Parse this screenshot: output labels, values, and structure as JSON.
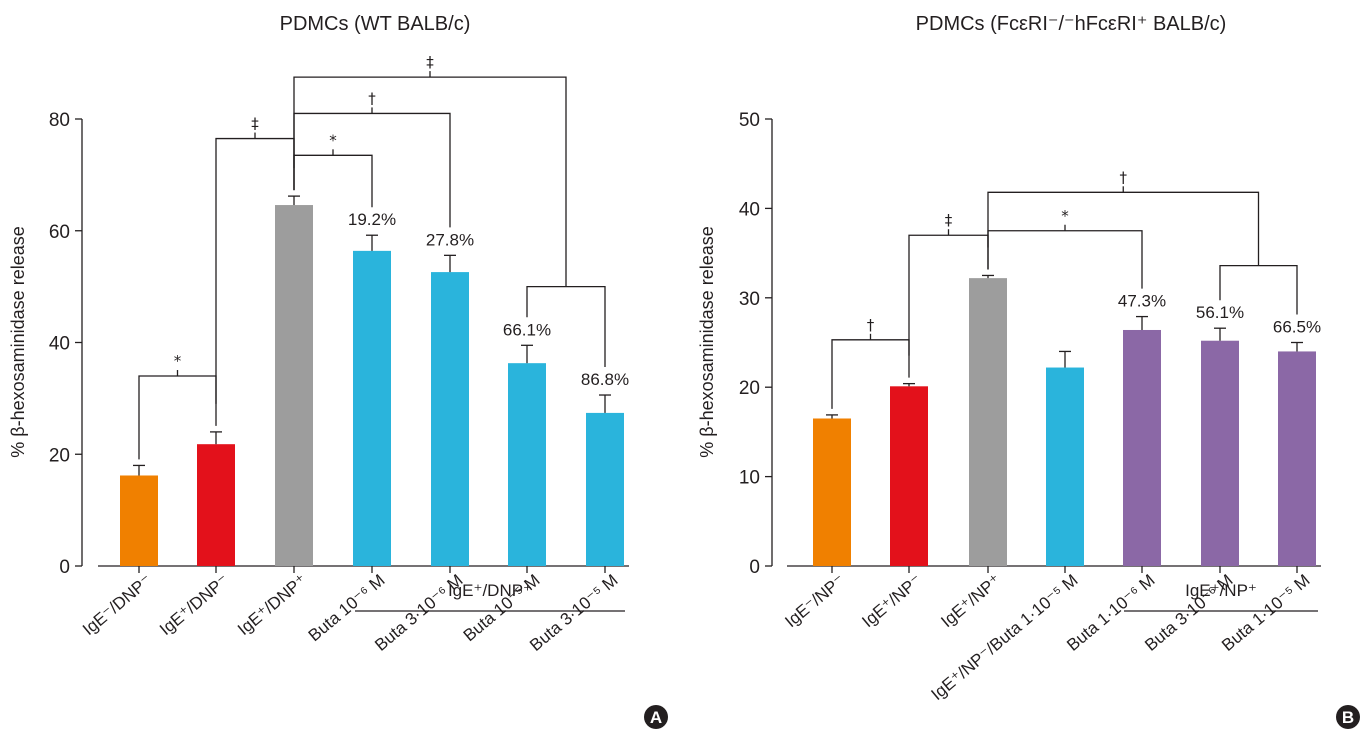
{
  "chart_data": [
    {
      "type": "bar",
      "panel": "A",
      "title": "PDMCs (WT BALB/c)",
      "ylabel": "% β-hexosaminidase release",
      "ylim": [
        0,
        80
      ],
      "yticks": [
        0,
        20,
        40,
        60,
        80
      ],
      "categories": [
        "IgE⁻/DNP⁻",
        "IgE⁺/DNP⁻",
        "IgE⁺/DNP⁺",
        "Buta 10⁻⁶ M",
        "Buta 3·10⁻⁶ M",
        "Buta 10⁻⁵ M",
        "Buta 3·10⁻⁵ M"
      ],
      "values": [
        16.2,
        21.8,
        64.6,
        56.4,
        52.6,
        36.3,
        27.4
      ],
      "errors": [
        1.8,
        2.2,
        1.6,
        2.8,
        3.0,
        3.2,
        3.2
      ],
      "colors": [
        "#f08000",
        "#e3111b",
        "#9d9d9d",
        "#2ab4dc",
        "#2ab4dc",
        "#2ab4dc",
        "#2ab4dc"
      ],
      "bar_labels": [
        "",
        "",
        "",
        "19.2%",
        "27.8%",
        "66.1%",
        "86.8%"
      ],
      "group_label": "IgE⁺/DNP⁺",
      "group_span": [
        3,
        6
      ],
      "significance": [
        {
          "from": [
            0
          ],
          "to": [
            1
          ],
          "level": 34,
          "mark": "*"
        },
        {
          "from": [
            1
          ],
          "to": [
            2
          ],
          "level": 76.5,
          "mark": "‡"
        },
        {
          "from": [
            2
          ],
          "to": [
            3
          ],
          "level": 73.5,
          "mark": "*"
        },
        {
          "from": [
            2
          ],
          "to": [
            4
          ],
          "level": 81,
          "mark": "†"
        },
        {
          "from": [
            2
          ],
          "to": [
            5,
            6
          ],
          "level": 87.5,
          "mark": "‡",
          "to_sub_level": 50
        }
      ]
    },
    {
      "type": "bar",
      "panel": "B",
      "title": "PDMCs (FcεRI⁻/⁻hFcεRI⁺ BALB/c)",
      "ylabel": "% β-hexosaminidase release",
      "ylim": [
        0,
        50
      ],
      "yticks": [
        0,
        10,
        20,
        30,
        40,
        50
      ],
      "categories": [
        "IgE⁻/NP⁻",
        "IgE⁺/NP⁻",
        "IgE⁺/NP⁺",
        "IgE⁺/NP⁻/Buta 1·10⁻⁵ M",
        "Buta 1·10⁻⁶ M",
        "Buta 3·10⁻⁶ M",
        "Buta 1·10⁻⁵ M"
      ],
      "values": [
        16.5,
        20.1,
        32.2,
        22.2,
        26.4,
        25.2,
        24.0
      ],
      "errors": [
        0.4,
        0.3,
        0.3,
        1.8,
        1.5,
        1.4,
        1.0
      ],
      "colors": [
        "#f08000",
        "#e3111b",
        "#9d9d9d",
        "#2ab4dc",
        "#8b68a6",
        "#8b68a6",
        "#8b68a6"
      ],
      "bar_labels": [
        "",
        "",
        "",
        "",
        "47.3%",
        "56.1%",
        "66.5%"
      ],
      "group_label": "IgE⁺/NP⁺",
      "group_span": [
        4,
        6
      ],
      "significance": [
        {
          "from": [
            0
          ],
          "to": [
            1
          ],
          "level": 25.3,
          "mark": "†"
        },
        {
          "from": [
            1
          ],
          "to": [
            2
          ],
          "level": 37.0,
          "mark": "‡"
        },
        {
          "from": [
            2
          ],
          "to": [
            4
          ],
          "level": 37.5,
          "mark": "*"
        },
        {
          "from": [
            2
          ],
          "to": [
            5,
            6
          ],
          "level": 41.8,
          "mark": "†",
          "to_sub_level": 33.6
        }
      ]
    }
  ]
}
